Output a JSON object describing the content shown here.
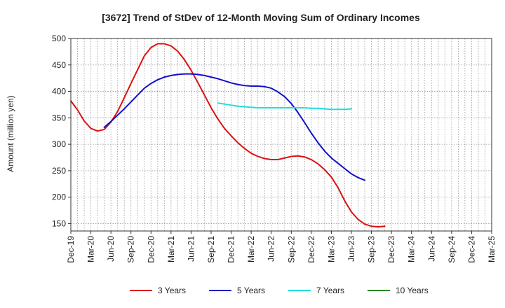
{
  "chart_data": {
    "type": "line",
    "title": "[3672]  Trend of StDev of 12-Month Moving Sum of Ordinary Incomes",
    "xlabel": "",
    "ylabel": "Amount (million yen)",
    "ylim": [
      136,
      500
    ],
    "yticks": [
      150,
      200,
      250,
      300,
      350,
      400,
      450,
      500
    ],
    "x_categories": [
      "Dec-19",
      "Mar-20",
      "Jun-20",
      "Sep-20",
      "Dec-20",
      "Mar-21",
      "Jun-21",
      "Sep-21",
      "Dec-21",
      "Mar-22",
      "Jun-22",
      "Sep-22",
      "Dec-22",
      "Mar-23",
      "Jun-23",
      "Sep-23",
      "Dec-23",
      "Mar-24",
      "Jun-24",
      "Sep-24",
      "Dec-24",
      "Mar-25"
    ],
    "grid": true,
    "legend_position": "bottom",
    "series": [
      {
        "name": "3 Years",
        "color": "#dd1111",
        "points": [
          [
            0,
            382
          ],
          [
            1,
            365
          ],
          [
            2,
            344
          ],
          [
            3,
            330
          ],
          [
            4,
            325
          ],
          [
            5,
            328
          ],
          [
            6,
            342
          ],
          [
            7,
            362
          ],
          [
            8,
            388
          ],
          [
            9,
            415
          ],
          [
            10,
            441
          ],
          [
            11,
            467
          ],
          [
            12,
            483
          ],
          [
            13,
            490
          ],
          [
            14,
            490
          ],
          [
            15,
            486
          ],
          [
            16,
            476
          ],
          [
            17,
            460
          ],
          [
            18,
            440
          ],
          [
            19,
            417
          ],
          [
            20,
            393
          ],
          [
            21,
            369
          ],
          [
            22,
            348
          ],
          [
            23,
            330
          ],
          [
            24,
            316
          ],
          [
            25,
            303
          ],
          [
            26,
            292
          ],
          [
            27,
            283
          ],
          [
            28,
            277
          ],
          [
            29,
            273
          ],
          [
            30,
            271
          ],
          [
            31,
            271
          ],
          [
            32,
            274
          ],
          [
            33,
            277
          ],
          [
            34,
            278
          ],
          [
            35,
            276
          ],
          [
            36,
            271
          ],
          [
            37,
            263
          ],
          [
            38,
            252
          ],
          [
            39,
            238
          ],
          [
            40,
            218
          ],
          [
            41,
            193
          ],
          [
            42,
            172
          ],
          [
            43,
            158
          ],
          [
            44,
            149
          ],
          [
            45,
            145
          ],
          [
            46,
            144
          ],
          [
            47,
            145
          ]
        ]
      },
      {
        "name": "5 Years",
        "color": "#1111cc",
        "points": [
          [
            5,
            332
          ],
          [
            6,
            343
          ],
          [
            7,
            355
          ],
          [
            8,
            367
          ],
          [
            9,
            380
          ],
          [
            10,
            393
          ],
          [
            11,
            406
          ],
          [
            12,
            415
          ],
          [
            13,
            422
          ],
          [
            14,
            427
          ],
          [
            15,
            430
          ],
          [
            16,
            432
          ],
          [
            17,
            433
          ],
          [
            18,
            433
          ],
          [
            19,
            432
          ],
          [
            20,
            430
          ],
          [
            21,
            427
          ],
          [
            22,
            424
          ],
          [
            23,
            420
          ],
          [
            24,
            416
          ],
          [
            25,
            413
          ],
          [
            26,
            411
          ],
          [
            27,
            410
          ],
          [
            28,
            410
          ],
          [
            29,
            409
          ],
          [
            30,
            406
          ],
          [
            31,
            399
          ],
          [
            32,
            390
          ],
          [
            33,
            377
          ],
          [
            34,
            360
          ],
          [
            35,
            341
          ],
          [
            36,
            321
          ],
          [
            37,
            303
          ],
          [
            38,
            287
          ],
          [
            39,
            274
          ],
          [
            40,
            264
          ],
          [
            41,
            254
          ],
          [
            42,
            244
          ],
          [
            43,
            237
          ],
          [
            44,
            232
          ]
        ]
      },
      {
        "name": "7 Years",
        "color": "#22dddd",
        "points": [
          [
            22,
            378
          ],
          [
            23,
            376
          ],
          [
            24,
            374
          ],
          [
            25,
            372
          ],
          [
            26,
            371
          ],
          [
            27,
            370
          ],
          [
            28,
            369
          ],
          [
            29,
            369
          ],
          [
            30,
            369
          ],
          [
            31,
            369
          ],
          [
            32,
            369
          ],
          [
            33,
            369
          ],
          [
            34,
            369
          ],
          [
            35,
            369
          ],
          [
            36,
            368
          ],
          [
            37,
            368
          ],
          [
            38,
            367
          ],
          [
            39,
            366
          ],
          [
            40,
            366
          ],
          [
            41,
            366
          ],
          [
            42,
            367
          ]
        ]
      },
      {
        "name": "10 Years",
        "color": "#228822",
        "points": []
      }
    ]
  }
}
